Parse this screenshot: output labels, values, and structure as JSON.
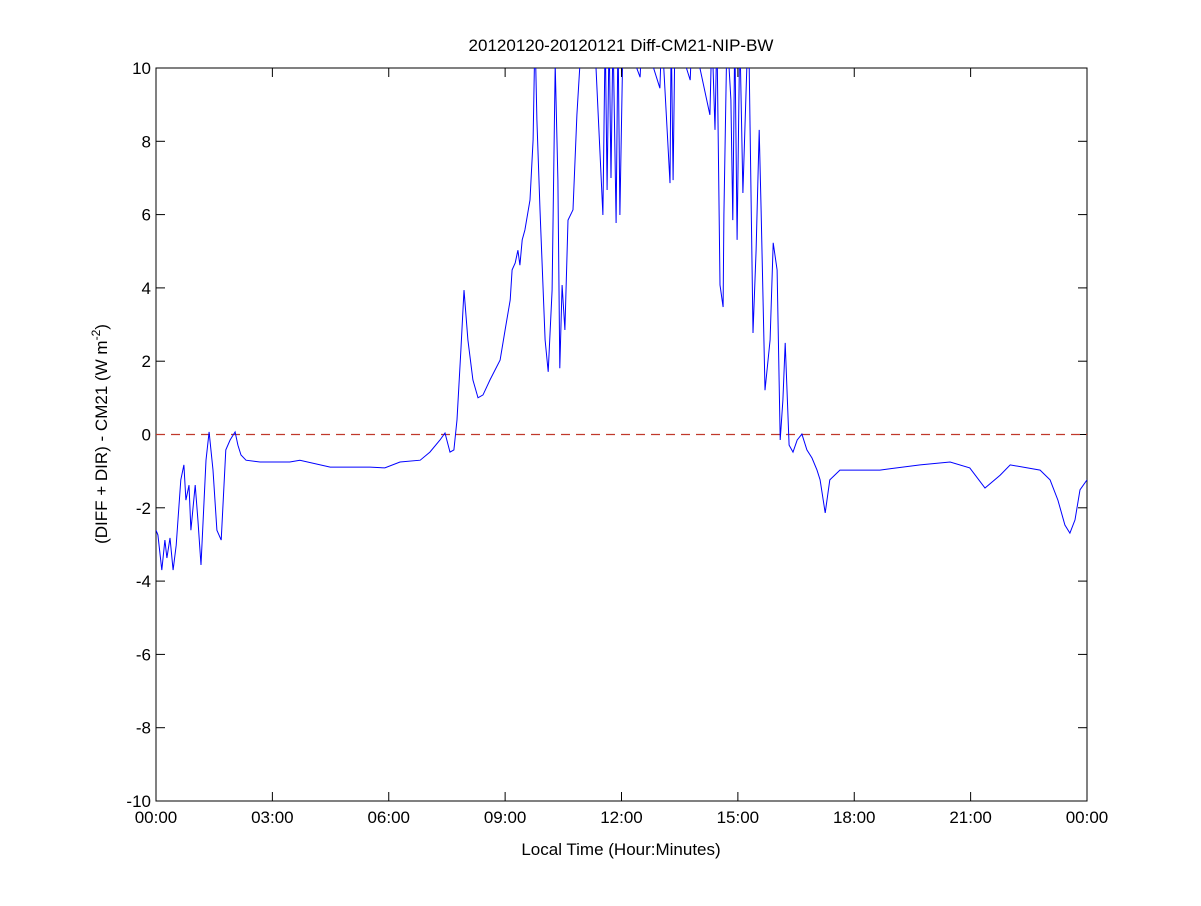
{
  "chart_data": {
    "type": "line",
    "title": "20120120-20120121 Diff-CM21-NIP-BW",
    "xlabel": "Local Time (Hour:Minutes)",
    "ylabel_main": "(DIFF + DIR) - CM21 (W m",
    "ylabel_sup": "-2",
    "ylabel_close": ")",
    "xlim_hours": [
      0,
      24
    ],
    "ylim": [
      -10,
      10
    ],
    "grid": false,
    "x_ticks": [
      {
        "hour": 0,
        "label": "00:00"
      },
      {
        "hour": 3,
        "label": "03:00"
      },
      {
        "hour": 6,
        "label": "06:00"
      },
      {
        "hour": 9,
        "label": "09:00"
      },
      {
        "hour": 12,
        "label": "12:00"
      },
      {
        "hour": 15,
        "label": "15:00"
      },
      {
        "hour": 18,
        "label": "18:00"
      },
      {
        "hour": 21,
        "label": "21:00"
      },
      {
        "hour": 24,
        "label": "00:00"
      }
    ],
    "y_ticks": [
      {
        "value": -10,
        "label": "-10"
      },
      {
        "value": -8,
        "label": "-8"
      },
      {
        "value": -6,
        "label": "-6"
      },
      {
        "value": -4,
        "label": "-4"
      },
      {
        "value": -2,
        "label": "-2"
      },
      {
        "value": 0,
        "label": "0"
      },
      {
        "value": 2,
        "label": "2"
      },
      {
        "value": 4,
        "label": "4"
      },
      {
        "value": 6,
        "label": "6"
      },
      {
        "value": 8,
        "label": "8"
      },
      {
        "value": 10,
        "label": "10"
      }
    ],
    "reference_line": {
      "value": 0,
      "style": "dashed",
      "color": "#c0392b"
    },
    "series": [
      {
        "color": "#0000ff",
        "x": [
          0.0,
          0.05,
          0.15,
          0.23,
          0.28,
          0.36,
          0.44,
          0.52,
          0.57,
          0.64,
          0.72,
          0.77,
          0.85,
          0.9,
          1.01,
          1.08,
          1.16,
          1.29,
          1.37,
          1.47,
          1.57,
          1.68,
          1.8,
          1.91,
          2.04,
          2.11,
          2.19,
          2.32,
          2.68,
          3.45,
          3.71,
          4.49,
          5.52,
          5.9,
          6.29,
          6.81,
          7.06,
          7.32,
          7.45,
          7.58,
          7.68,
          7.76,
          7.86,
          7.94,
          8.04,
          8.17,
          8.3,
          8.43,
          8.61,
          8.87,
          9.0,
          9.13,
          9.18,
          9.26,
          9.33,
          9.38,
          9.44,
          9.51,
          9.64,
          9.72,
          9.77,
          9.82,
          9.9,
          10.03,
          10.11,
          10.21,
          10.29,
          10.36,
          10.41,
          10.47,
          10.54,
          10.62,
          10.75,
          10.85,
          10.98,
          11.3,
          11.52,
          11.58,
          11.63,
          11.68,
          11.73,
          11.78,
          11.86,
          11.91,
          11.96,
          12.04,
          12.48,
          12.53,
          12.99,
          13.04,
          13.25,
          13.28,
          13.33,
          13.38,
          13.77,
          13.82,
          14.28,
          14.33,
          14.41,
          14.46,
          14.54,
          14.62,
          14.64,
          14.72,
          14.82,
          14.87,
          14.92,
          14.98,
          15.05,
          15.13,
          15.23,
          15.28,
          15.39,
          15.47,
          15.55,
          15.6,
          15.7,
          15.83,
          15.91,
          16.01,
          16.09,
          16.16,
          16.22,
          16.32,
          16.42,
          16.53,
          16.65,
          16.78,
          16.91,
          17.04,
          17.12,
          17.25,
          17.37,
          17.63,
          18.66,
          19.7,
          20.47,
          20.98,
          21.37,
          21.76,
          22.02,
          22.79,
          23.05,
          23.25,
          23.43,
          23.56,
          23.69,
          23.82,
          24.0
        ],
        "y": [
          -2.61,
          -2.74,
          -3.7,
          -2.88,
          -3.37,
          -2.82,
          -3.7,
          -3.02,
          -2.28,
          -1.24,
          -0.83,
          -1.79,
          -1.38,
          -2.61,
          -1.38,
          -2.33,
          -3.56,
          -0.7,
          0.07,
          -0.97,
          -2.61,
          -2.88,
          -0.42,
          -0.15,
          0.07,
          -0.29,
          -0.56,
          -0.7,
          -0.75,
          -0.75,
          -0.7,
          -0.89,
          -0.89,
          -0.91,
          -0.75,
          -0.7,
          -0.48,
          -0.15,
          0.04,
          -0.48,
          -0.42,
          0.4,
          2.31,
          3.94,
          2.58,
          1.49,
          1.0,
          1.08,
          1.49,
          2.03,
          2.85,
          3.67,
          4.49,
          4.68,
          5.03,
          4.62,
          5.31,
          5.58,
          6.4,
          8.04,
          11,
          8.58,
          6.13,
          2.58,
          1.71,
          3.94,
          10.1,
          6.94,
          1.81,
          4.08,
          2.85,
          5.85,
          6.13,
          8.72,
          11,
          11,
          5.99,
          11,
          6.67,
          11,
          7.0,
          11,
          5.77,
          11,
          5.99,
          11,
          9.75,
          11,
          9.45,
          11,
          6.86,
          11,
          6.94,
          11,
          9.67,
          11,
          8.72,
          11,
          8.31,
          11,
          4.08,
          3.48,
          5.99,
          11,
          9.13,
          5.85,
          11,
          5.31,
          11,
          6.59,
          10.0,
          11,
          2.77,
          5.03,
          8.31,
          6.13,
          1.21,
          2.58,
          5.23,
          4.49,
          -0.15,
          0.94,
          2.5,
          -0.29,
          -0.48,
          -0.15,
          0.01,
          -0.42,
          -0.64,
          -0.97,
          -1.24,
          -2.14,
          -1.24,
          -0.97,
          -0.97,
          -0.83,
          -0.75,
          -0.91,
          -1.46,
          -1.11,
          -0.83,
          -0.97,
          -1.24,
          -1.79,
          -2.47,
          -2.69,
          -2.33,
          -1.51,
          -1.24
        ]
      }
    ]
  }
}
